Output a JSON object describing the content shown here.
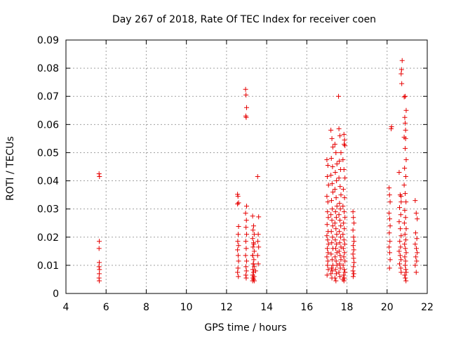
{
  "chart_data": {
    "type": "scatter",
    "title": "Day 267 of 2018, Rate Of TEC Index for receiver coen",
    "xlabel": "GPS time / hours",
    "ylabel": "ROTI / TECUs",
    "xlim": [
      4,
      22
    ],
    "ylim": [
      0,
      0.09
    ],
    "xticks": [
      "4",
      "6",
      "8",
      "10",
      "12",
      "14",
      "16",
      "18",
      "20",
      "22"
    ],
    "yticks": [
      "0",
      "0.01",
      "0.02",
      "0.03",
      "0.04",
      "0.05",
      "0.06",
      "0.07",
      "0.08",
      "0.09"
    ],
    "grid": true,
    "marker": "plus",
    "color": "#e60000",
    "series": [
      {
        "x": [
          5.65,
          5.67,
          5.66,
          5.65,
          5.66,
          5.65,
          5.67,
          5.66,
          5.65,
          5.66,
          12.55,
          12.57,
          12.6,
          12.55,
          12.6,
          12.58,
          12.56,
          12.6,
          12.55,
          12.58,
          12.6,
          12.57,
          12.55,
          12.59,
          12.95,
          12.97,
          13.0,
          12.96,
          12.98,
          13.0,
          12.95,
          12.99,
          12.97,
          13.0,
          12.96,
          12.98,
          12.95,
          13.0,
          12.97,
          12.99,
          12.96,
          12.98,
          13.3,
          13.35,
          13.32,
          13.38,
          13.3,
          13.35,
          13.32,
          13.38,
          13.3,
          13.36,
          13.33,
          13.38,
          13.31,
          13.35,
          13.3,
          13.37,
          13.32,
          13.35,
          13.3,
          13.38,
          13.34,
          13.31,
          13.36,
          13.55,
          13.6,
          13.58,
          13.56,
          13.6,
          13.55,
          13.58,
          13.45,
          17.0,
          17.05,
          17.02,
          17.08,
          17.0,
          17.05,
          17.03,
          17.07,
          17.01,
          17.06,
          17.0,
          17.04,
          17.08,
          17.02,
          17.06,
          17.0,
          17.05,
          17.03,
          17.07,
          17.01,
          17.2,
          17.25,
          17.3,
          17.22,
          17.28,
          17.2,
          17.26,
          17.3,
          17.23,
          17.27,
          17.2,
          17.25,
          17.29,
          17.22,
          17.28,
          17.24,
          17.3,
          17.21,
          17.26,
          17.3,
          17.23,
          17.27,
          17.2,
          17.25,
          17.4,
          17.45,
          17.5,
          17.42,
          17.48,
          17.4,
          17.46,
          17.5,
          17.43,
          17.47,
          17.4,
          17.45,
          17.49,
          17.42,
          17.48,
          17.44,
          17.5,
          17.41,
          17.46,
          17.5,
          17.43,
          17.47,
          17.4,
          17.45,
          17.6,
          17.65,
          17.7,
          17.62,
          17.68,
          17.6,
          17.66,
          17.7,
          17.63,
          17.67,
          17.6,
          17.65,
          17.69,
          17.62,
          17.68,
          17.64,
          17.7,
          17.61,
          17.66,
          17.7,
          17.63,
          17.67,
          17.6,
          17.65,
          17.8,
          17.85,
          17.9,
          17.82,
          17.88,
          17.8,
          17.86,
          17.9,
          17.83,
          17.87,
          17.8,
          17.85,
          17.89,
          17.82,
          17.88,
          17.84,
          17.9,
          17.81,
          17.86,
          17.9,
          17.83,
          17.87,
          17.8,
          17.85,
          18.3,
          18.32,
          18.35,
          18.3,
          18.33,
          18.35,
          18.31,
          18.34,
          18.3,
          18.33,
          18.35,
          18.32,
          18.3,
          18.34,
          18.31,
          17.58,
          17.85,
          17.88,
          17.9,
          17.86,
          20.1,
          20.12,
          20.15,
          20.1,
          20.13,
          20.15,
          20.11,
          20.14,
          20.1,
          20.13,
          20.15,
          20.12,
          20.2,
          20.22,
          20.6,
          20.65,
          20.7,
          20.62,
          20.68,
          20.6,
          20.66,
          20.7,
          20.63,
          20.67,
          20.6,
          20.65,
          20.69,
          20.62,
          20.68,
          20.7,
          20.75,
          20.72,
          20.7,
          20.73,
          20.7,
          20.85,
          20.9,
          20.95,
          20.88,
          20.92,
          20.85,
          20.9,
          20.95,
          20.87,
          20.93,
          20.85,
          20.9,
          20.94,
          20.88,
          20.92,
          20.86,
          20.95,
          20.89,
          20.93,
          20.87,
          20.91,
          20.95,
          20.88,
          20.92,
          20.9,
          20.93,
          20.95,
          20.88,
          20.91,
          20.94,
          20.9,
          20.92,
          21.4,
          21.45,
          21.5,
          21.42,
          21.48,
          21.4,
          21.46,
          21.5,
          21.43,
          21.47,
          21.4,
          21.45
        ],
        "y": [
          0.0425,
          0.0415,
          0.0185,
          0.016,
          0.011,
          0.0095,
          0.0085,
          0.007,
          0.0055,
          0.0045,
          0.0352,
          0.0345,
          0.0322,
          0.0318,
          0.0238,
          0.021,
          0.0185,
          0.017,
          0.0155,
          0.0135,
          0.0115,
          0.009,
          0.0075,
          0.006,
          0.0725,
          0.0705,
          0.066,
          0.063,
          0.0625,
          0.031,
          0.0285,
          0.026,
          0.0235,
          0.021,
          0.0185,
          0.016,
          0.0135,
          0.0115,
          0.0095,
          0.008,
          0.0065,
          0.0055,
          0.0275,
          0.024,
          0.0225,
          0.021,
          0.0195,
          0.018,
          0.0165,
          0.015,
          0.0135,
          0.012,
          0.0105,
          0.0095,
          0.0085,
          0.0075,
          0.0065,
          0.006,
          0.0055,
          0.005,
          0.0045,
          0.0045,
          0.0105,
          0.0135,
          0.0175,
          0.0415,
          0.0272,
          0.021,
          0.0185,
          0.0165,
          0.0135,
          0.0105,
          0.008,
          0.0475,
          0.0455,
          0.0415,
          0.0385,
          0.0345,
          0.0325,
          0.029,
          0.027,
          0.0245,
          0.022,
          0.0205,
          0.019,
          0.0175,
          0.016,
          0.0145,
          0.013,
          0.0115,
          0.01,
          0.0085,
          0.0065,
          0.058,
          0.055,
          0.052,
          0.048,
          0.045,
          0.042,
          0.039,
          0.036,
          0.033,
          0.03,
          0.028,
          0.026,
          0.024,
          0.022,
          0.02,
          0.018,
          0.016,
          0.014,
          0.012,
          0.01,
          0.009,
          0.008,
          0.007,
          0.0055,
          0.053,
          0.05,
          0.046,
          0.043,
          0.04,
          0.037,
          0.034,
          0.031,
          0.029,
          0.027,
          0.025,
          0.023,
          0.021,
          0.019,
          0.0175,
          0.016,
          0.0145,
          0.013,
          0.0115,
          0.01,
          0.0085,
          0.007,
          0.0055,
          0.0045,
          0.0585,
          0.056,
          0.05,
          0.047,
          0.044,
          0.041,
          0.038,
          0.035,
          0.032,
          0.03,
          0.028,
          0.026,
          0.024,
          0.022,
          0.02,
          0.018,
          0.0165,
          0.015,
          0.0135,
          0.012,
          0.0105,
          0.009,
          0.0075,
          0.006,
          0.0475,
          0.044,
          0.041,
          0.037,
          0.034,
          0.031,
          0.029,
          0.027,
          0.025,
          0.023,
          0.021,
          0.019,
          0.0175,
          0.016,
          0.0145,
          0.013,
          0.0115,
          0.01,
          0.0085,
          0.0075,
          0.0065,
          0.0055,
          0.005,
          0.0045,
          0.029,
          0.027,
          0.025,
          0.0225,
          0.02,
          0.0185,
          0.017,
          0.0155,
          0.014,
          0.0125,
          0.011,
          0.0095,
          0.008,
          0.007,
          0.006,
          0.07,
          0.0565,
          0.0545,
          0.0525,
          0.053,
          0.0375,
          0.035,
          0.0325,
          0.0285,
          0.0265,
          0.024,
          0.0215,
          0.0185,
          0.0165,
          0.0145,
          0.012,
          0.009,
          0.0585,
          0.0592,
          0.043,
          0.035,
          0.0325,
          0.0305,
          0.028,
          0.0255,
          0.023,
          0.0205,
          0.0185,
          0.0165,
          0.015,
          0.0135,
          0.012,
          0.0105,
          0.009,
          0.0075,
          0.0827,
          0.0795,
          0.078,
          0.0745,
          0.0345,
          0.0698,
          0.07,
          0.065,
          0.0625,
          0.058,
          0.0555,
          0.0515,
          0.0475,
          0.0445,
          0.0415,
          0.0385,
          0.0355,
          0.0325,
          0.0295,
          0.027,
          0.025,
          0.023,
          0.021,
          0.019,
          0.0175,
          0.016,
          0.0145,
          0.013,
          0.0115,
          0.01,
          0.0085,
          0.0075,
          0.0065,
          0.0055,
          0.0045,
          0.0605,
          0.055,
          0.033,
          0.0285,
          0.0265,
          0.0215,
          0.0195,
          0.0175,
          0.016,
          0.0145,
          0.013,
          0.0115,
          0.01,
          0.0075
        ]
      }
    ]
  }
}
